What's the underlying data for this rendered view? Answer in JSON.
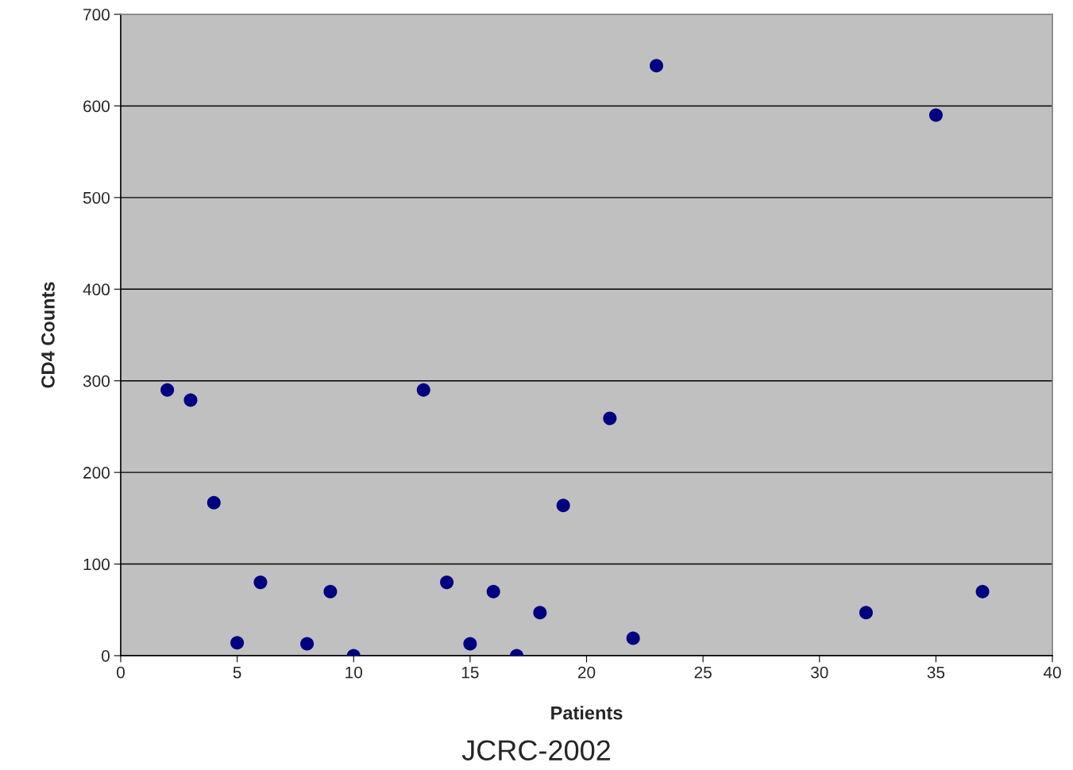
{
  "chart_data": {
    "type": "scatter",
    "xlabel": "Patients",
    "ylabel": "CD4 Counts",
    "annotations": [
      "JCRC-2002"
    ],
    "x": [
      2,
      3,
      4,
      5,
      6,
      8,
      9,
      10,
      13,
      14,
      15,
      16,
      17,
      18,
      19,
      21,
      22,
      23,
      32,
      35,
      37
    ],
    "series": [
      {
        "color": "#000080",
        "values": [
          290,
          279,
          167,
          14,
          80,
          13,
          70,
          0,
          290,
          80,
          13,
          70,
          0,
          47,
          164,
          259,
          19,
          644,
          47,
          590,
          70
        ]
      }
    ],
    "xlim": [
      0,
      40
    ],
    "xticks": [
      0,
      5,
      10,
      15,
      20,
      25,
      30,
      35,
      40
    ],
    "ylim": [
      0,
      700
    ],
    "yticks": [
      0,
      100,
      200,
      300,
      400,
      500,
      600,
      700
    ],
    "grid": "y",
    "marker": "circle",
    "legend": false
  }
}
